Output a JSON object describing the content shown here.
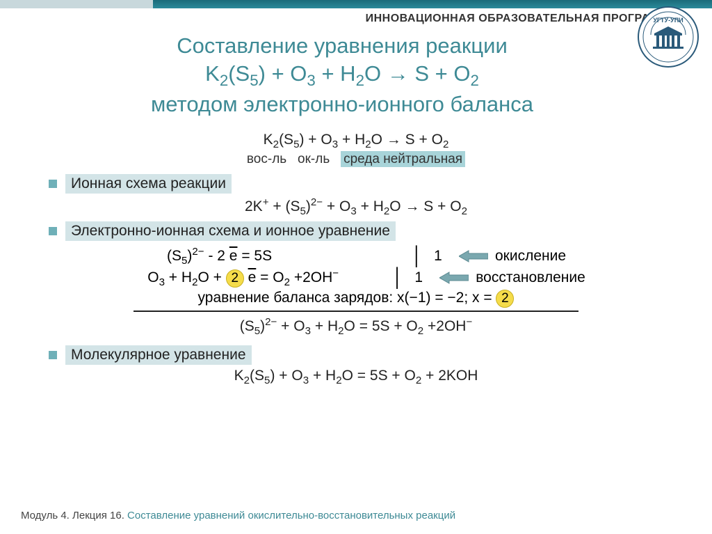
{
  "header": {
    "program_label": "ИННОВАЦИОННАЯ ОБРАЗОВАТЕЛЬНАЯ ПРОГРАММА",
    "logo_text": "УГТУ-УПИ"
  },
  "title": {
    "line1": "Составление уравнения реакции",
    "line2_html": "K<sub>2</sub>(S<sub>5</sub>) + O<sub>3</sub> + H<sub>2</sub>O → S + O<sub>2</sub>",
    "line3": "методом электронно-ионного баланса"
  },
  "eq_top_html": "K<sub>2</sub>(S<sub>5</sub>) + O<sub>3</sub> + H<sub>2</sub>O → S + O<sub>2</sub>",
  "labels": {
    "reducer": "вос-ль",
    "oxidizer": "ок-ль",
    "medium": "среда нейтральная"
  },
  "sections": {
    "ionic_scheme": "Ионная схема реакции",
    "electron_ionic": "Электронно-ионная схема и ионное уравнение",
    "molecular": "Молекулярное уравнение"
  },
  "ionic_eq_html": "2K<sup>+</sup> + (S<sub>5</sub>)<sup>2−</sup> + O<sub>3</sub> + H<sub>2</sub>O → S + O<sub>2</sub>",
  "half": {
    "row1_left_html": "(S<sub>5</sub>)<sup>2−</sup> - 2 <span class='ebar'>e</span> = 5S",
    "row1_coef": "1",
    "row1_process": "окисление",
    "row2_left_html": "O<sub>3</sub> + H<sub>2</sub>O + <span class='circle-y'>2</span> <span class='ebar'>e</span> = O<sub>2</sub> +2OH<sup>−</sup>",
    "row2_coef": "1",
    "row2_process": "восстановление"
  },
  "balance_html": "уравнение баланса зарядов:  x(−1) = −2;    x = <span class='circle-y'>2</span>",
  "sum_eq_html": "(S<sub>5</sub>)<sup>2−</sup> + O<sub>3</sub> + H<sub>2</sub>O = 5S + O<sub>2</sub> +2OH<sup>−</sup>",
  "molecular_eq_html": "K<sub>2</sub>(S<sub>5</sub>) + O<sub>3</sub> + H<sub>2</sub>O = 5S + O<sub>2</sub> + 2KOH",
  "footer": {
    "module": "Модуль 4. Лекция 16.",
    "topic": "Составление уравнений окислительно-восстановительных реакций"
  },
  "colors": {
    "title": "#3e8a95",
    "highlight": "#a8d4d9",
    "section_bg": "#d3e4e7",
    "bullet": "#6fb0b8",
    "circle": "#f5dc4a",
    "arrow": "#7aa8af",
    "stripe": "#2a8a9a"
  }
}
